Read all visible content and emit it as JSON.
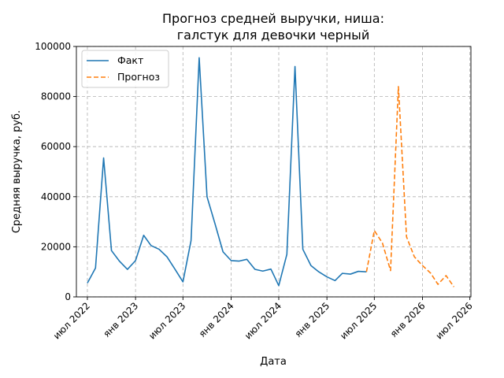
{
  "chart_data": {
    "type": "line",
    "title": [
      "Прогноз средней выручки, ниша:",
      "галстук для девочки черный"
    ],
    "xlabel": "Дата",
    "ylabel": "Средняя выручка, руб.",
    "ylim": [
      0,
      100000
    ],
    "yticks": [
      0,
      20000,
      40000,
      60000,
      80000,
      100000
    ],
    "ytick_labels": [
      "0",
      "20000",
      "40000",
      "60000",
      "80000",
      "100000"
    ],
    "xlim": [
      "2022-05-20",
      "2026-07-05"
    ],
    "xticks": [
      "2022-07-01",
      "2023-01-01",
      "2023-07-01",
      "2024-01-01",
      "2024-07-01",
      "2025-01-01",
      "2025-07-01",
      "2026-01-01",
      "2026-07-01"
    ],
    "xtick_labels": [
      "июл 2022",
      "янв 2023",
      "июл 2023",
      "янв 2024",
      "июл 2024",
      "янв 2025",
      "июл 2025",
      "янв 2026",
      "июл 2026"
    ],
    "grid": true,
    "legend_position": "top-left",
    "series": [
      {
        "name": "Факт",
        "color": "#1f77b4",
        "style": "solid",
        "x": [
          "2022-07-01",
          "2022-08-01",
          "2022-09-01",
          "2022-10-01",
          "2022-11-01",
          "2022-12-01",
          "2023-01-01",
          "2023-02-01",
          "2023-03-01",
          "2023-04-01",
          "2023-05-01",
          "2023-06-01",
          "2023-07-01",
          "2023-08-01",
          "2023-09-01",
          "2023-10-01",
          "2023-11-01",
          "2023-12-01",
          "2024-01-01",
          "2024-02-01",
          "2024-03-01",
          "2024-04-01",
          "2024-05-01",
          "2024-06-01",
          "2024-07-01",
          "2024-08-01",
          "2024-09-01",
          "2024-10-01",
          "2024-11-01",
          "2024-12-01",
          "2025-01-01",
          "2025-02-01",
          "2025-03-01",
          "2025-04-01",
          "2025-05-01",
          "2025-06-01"
        ],
        "y": [
          5500,
          11500,
          55500,
          18500,
          14200,
          11000,
          14500,
          24600,
          20500,
          19000,
          16000,
          11000,
          6000,
          22500,
          95500,
          40000,
          29000,
          18000,
          14500,
          14300,
          15000,
          11000,
          10300,
          11100,
          4500,
          17000,
          92000,
          19000,
          12500,
          10000,
          8000,
          6500,
          9400,
          9100,
          10200,
          10000
        ]
      },
      {
        "name": "Прогноз",
        "color": "#ff7f0e",
        "style": "dashed",
        "x": [
          "2025-06-01",
          "2025-07-01",
          "2025-08-01",
          "2025-09-01",
          "2025-10-01",
          "2025-11-01",
          "2025-12-01",
          "2026-01-01",
          "2026-02-01",
          "2026-03-01",
          "2026-04-01",
          "2026-05-01"
        ],
        "y": [
          10000,
          26500,
          21500,
          10500,
          84000,
          24000,
          16000,
          12500,
          9500,
          5000,
          8500,
          4000
        ]
      }
    ]
  }
}
